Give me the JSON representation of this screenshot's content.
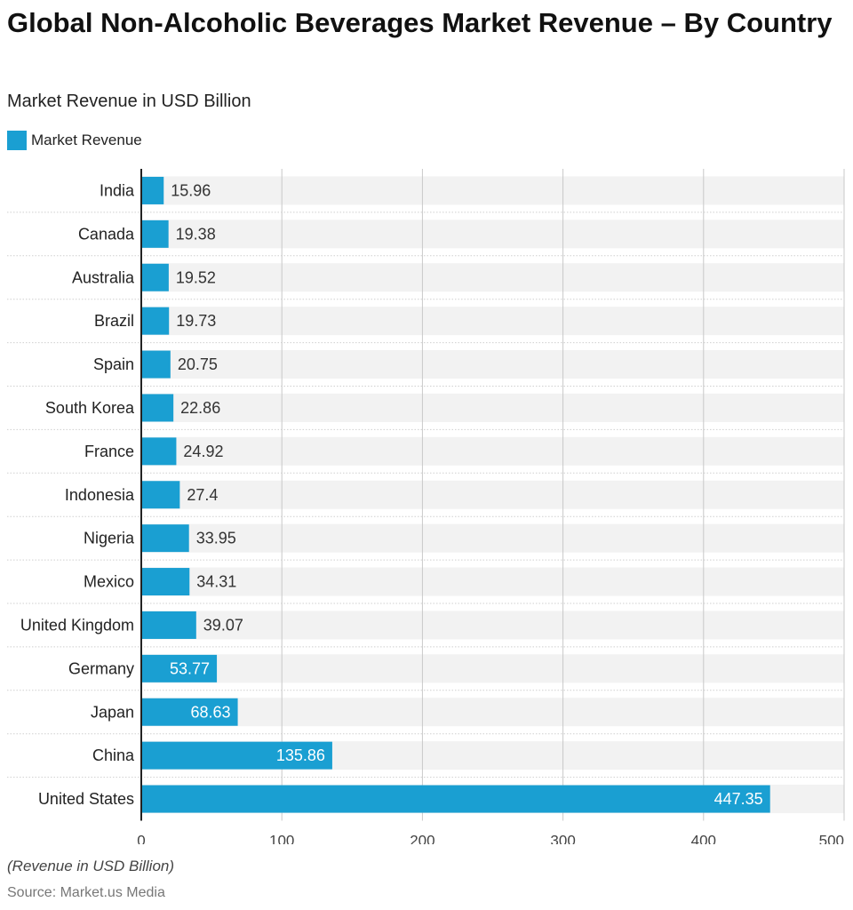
{
  "header": {
    "title": "Global Non-Alcoholic Beverages Market Revenue – By Country",
    "subtitle": "Market Revenue in USD Billion"
  },
  "legend": {
    "label": "Market Revenue",
    "color": "#1a9fd2"
  },
  "footer": {
    "note": "(Revenue in USD Billion)",
    "source": "Source: Market.us Media"
  },
  "colors": {
    "bar": "#1a9fd2",
    "band": "#f2f2f2",
    "grid": "#c8c8c8",
    "axis": "#222222"
  },
  "chart_data": {
    "type": "bar",
    "orientation": "horizontal",
    "title": "Global Non-Alcoholic Beverages Market Revenue – By Country",
    "subtitle": "Market Revenue in USD Billion",
    "xlabel": "",
    "ylabel": "",
    "xlim": [
      0,
      500
    ],
    "xticks": [
      0,
      100,
      200,
      300,
      400,
      500
    ],
    "grid": true,
    "legend_position": "top-left",
    "categories": [
      "India",
      "Canada",
      "Australia",
      "Brazil",
      "Spain",
      "South Korea",
      "France",
      "Indonesia",
      "Nigeria",
      "Mexico",
      "United Kingdom",
      "Germany",
      "Japan",
      "China",
      "United States"
    ],
    "series": [
      {
        "name": "Market Revenue",
        "values": [
          15.96,
          19.38,
          19.52,
          19.73,
          20.75,
          22.86,
          24.92,
          27.4,
          33.95,
          34.31,
          39.07,
          53.77,
          68.63,
          135.86,
          447.35
        ],
        "labels": [
          "15.96",
          "19.38",
          "19.52",
          "19.73",
          "20.75",
          "22.86",
          "24.92",
          "27.4",
          "33.95",
          "34.31",
          "39.07",
          "53.77",
          "68.63",
          "135.86",
          "447.35"
        ]
      }
    ]
  }
}
